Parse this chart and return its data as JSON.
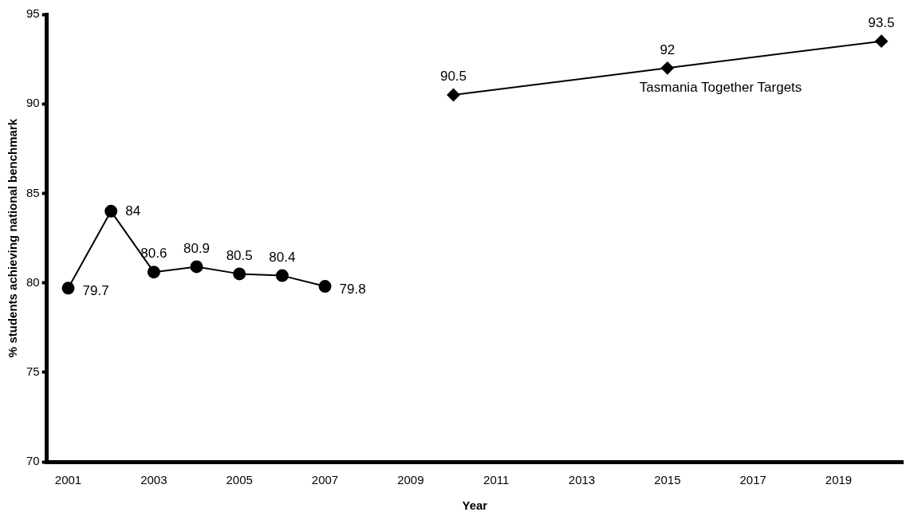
{
  "chart_data": {
    "type": "line",
    "xlabel": "Year",
    "ylabel": "% students achieving national benchmark",
    "categories": [
      "2001",
      null,
      "2003",
      null,
      "2005",
      null,
      "2007",
      null,
      "2009",
      null,
      "2011",
      null,
      "2013",
      null,
      "2015",
      null,
      "2017",
      null,
      "2019",
      null
    ],
    "series": [
      {
        "color": "#000000",
        "marker": "circle",
        "values": [
          79.7,
          84,
          80.6,
          80.9,
          80.5,
          80.4,
          79.8,
          null,
          null,
          null,
          null,
          null,
          null,
          null,
          null,
          null,
          null,
          null,
          null,
          null
        ]
      },
      {
        "name": "Tasmania Together Targets",
        "color": "#000000",
        "marker": "diamond",
        "values": [
          null,
          null,
          null,
          null,
          null,
          null,
          null,
          null,
          null,
          90.5,
          null,
          null,
          null,
          null,
          92,
          null,
          null,
          null,
          null,
          93.5
        ]
      }
    ],
    "ylim": [
      70,
      95
    ],
    "yticks": [
      70,
      75,
      80,
      85,
      90,
      95
    ],
    "grid": false,
    "legend": false,
    "data_labels": true,
    "line_style": "solid"
  }
}
